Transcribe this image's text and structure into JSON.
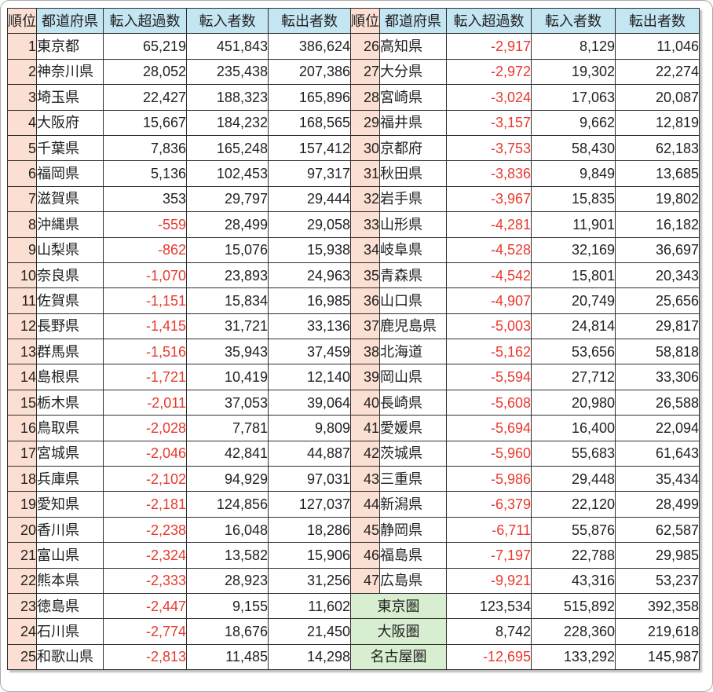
{
  "colors": {
    "header_bg": "#c4e6f3",
    "rank_bg": "#fbdfd2",
    "region_bg": "#d8eed0",
    "negative_color": "#e8392e",
    "border_color": "#2f2f2f",
    "text_color": "#222222"
  },
  "chart_data": {
    "type": "table",
    "title": "",
    "columns": [
      "順位",
      "都道府県",
      "転入超過数",
      "転入者数",
      "転出者数"
    ],
    "left_rows": [
      [
        "1",
        "東京都",
        "65,219",
        "451,843",
        "386,624"
      ],
      [
        "2",
        "神奈川県",
        "28,052",
        "235,438",
        "207,386"
      ],
      [
        "3",
        "埼玉県",
        "22,427",
        "188,323",
        "165,896"
      ],
      [
        "4",
        "大阪府",
        "15,667",
        "184,232",
        "168,565"
      ],
      [
        "5",
        "千葉県",
        "7,836",
        "165,248",
        "157,412"
      ],
      [
        "6",
        "福岡県",
        "5,136",
        "102,453",
        "97,317"
      ],
      [
        "7",
        "滋賀県",
        "353",
        "29,797",
        "29,444"
      ],
      [
        "8",
        "沖縄県",
        "-559",
        "28,499",
        "29,058"
      ],
      [
        "9",
        "山梨県",
        "-862",
        "15,076",
        "15,938"
      ],
      [
        "10",
        "奈良県",
        "-1,070",
        "23,893",
        "24,963"
      ],
      [
        "11",
        "佐賀県",
        "-1,151",
        "15,834",
        "16,985"
      ],
      [
        "12",
        "長野県",
        "-1,415",
        "31,721",
        "33,136"
      ],
      [
        "13",
        "群馬県",
        "-1,516",
        "35,943",
        "37,459"
      ],
      [
        "14",
        "島根県",
        "-1,721",
        "10,419",
        "12,140"
      ],
      [
        "15",
        "栃木県",
        "-2,011",
        "37,053",
        "39,064"
      ],
      [
        "16",
        "鳥取県",
        "-2,028",
        "7,781",
        "9,809"
      ],
      [
        "17",
        "宮城県",
        "-2,046",
        "42,841",
        "44,887"
      ],
      [
        "18",
        "兵庫県",
        "-2,102",
        "94,929",
        "97,031"
      ],
      [
        "19",
        "愛知県",
        "-2,181",
        "124,856",
        "127,037"
      ],
      [
        "20",
        "香川県",
        "-2,238",
        "16,048",
        "18,286"
      ],
      [
        "21",
        "富山県",
        "-2,324",
        "13,582",
        "15,906"
      ],
      [
        "22",
        "熊本県",
        "-2,333",
        "28,923",
        "31,256"
      ],
      [
        "23",
        "徳島県",
        "-2,447",
        "9,155",
        "11,602"
      ],
      [
        "24",
        "石川県",
        "-2,774",
        "18,676",
        "21,450"
      ],
      [
        "25",
        "和歌山県",
        "-2,813",
        "11,485",
        "14,298"
      ]
    ],
    "right_rows": [
      [
        "26",
        "高知県",
        "-2,917",
        "8,129",
        "11,046"
      ],
      [
        "27",
        "大分県",
        "-2,972",
        "19,302",
        "22,274"
      ],
      [
        "28",
        "宮崎県",
        "-3,024",
        "17,063",
        "20,087"
      ],
      [
        "29",
        "福井県",
        "-3,157",
        "9,662",
        "12,819"
      ],
      [
        "30",
        "京都府",
        "-3,753",
        "58,430",
        "62,183"
      ],
      [
        "31",
        "秋田県",
        "-3,836",
        "9,849",
        "13,685"
      ],
      [
        "32",
        "岩手県",
        "-3,967",
        "15,835",
        "19,802"
      ],
      [
        "33",
        "山形県",
        "-4,281",
        "11,901",
        "16,182"
      ],
      [
        "34",
        "岐阜県",
        "-4,528",
        "32,169",
        "36,697"
      ],
      [
        "35",
        "青森県",
        "-4,542",
        "15,801",
        "20,343"
      ],
      [
        "36",
        "山口県",
        "-4,907",
        "20,749",
        "25,656"
      ],
      [
        "37",
        "鹿児島県",
        "-5,003",
        "24,814",
        "29,817"
      ],
      [
        "38",
        "北海道",
        "-5,162",
        "53,656",
        "58,818"
      ],
      [
        "39",
        "岡山県",
        "-5,594",
        "27,712",
        "33,306"
      ],
      [
        "40",
        "長崎県",
        "-5,608",
        "20,980",
        "26,588"
      ],
      [
        "41",
        "愛媛県",
        "-5,694",
        "16,400",
        "22,094"
      ],
      [
        "42",
        "茨城県",
        "-5,960",
        "55,683",
        "61,643"
      ],
      [
        "43",
        "三重県",
        "-5,986",
        "29,448",
        "35,434"
      ],
      [
        "44",
        "新潟県",
        "-6,379",
        "22,120",
        "28,499"
      ],
      [
        "45",
        "静岡県",
        "-6,711",
        "55,876",
        "62,587"
      ],
      [
        "46",
        "福島県",
        "-7,197",
        "22,788",
        "29,985"
      ],
      [
        "47",
        "広島県",
        "-9,921",
        "43,316",
        "53,237"
      ]
    ],
    "region_rows": [
      [
        "東京圏",
        "123,534",
        "515,892",
        "392,358"
      ],
      [
        "大阪圏",
        "8,742",
        "228,360",
        "219,618"
      ],
      [
        "名古屋圏",
        "-12,695",
        "133,292",
        "145,987"
      ]
    ]
  }
}
